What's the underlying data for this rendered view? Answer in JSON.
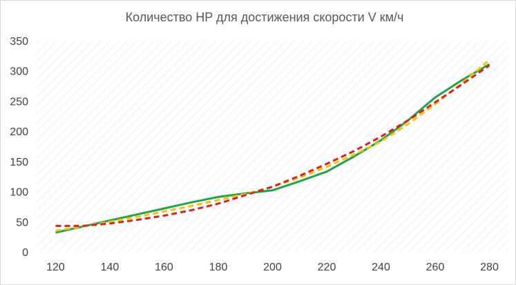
{
  "chart_data": {
    "type": "line",
    "title": "Количество HP для достижения скорости V км/ч",
    "xlabel": "",
    "ylabel": "",
    "x": [
      120,
      130,
      140,
      150,
      160,
      170,
      180,
      190,
      200,
      210,
      220,
      230,
      240,
      250,
      260,
      270,
      280
    ],
    "x_tick_labels": [
      "120",
      "140",
      "160",
      "180",
      "200",
      "220",
      "240",
      "260",
      "280"
    ],
    "y_tick_labels": [
      "0",
      "50",
      "100",
      "150",
      "200",
      "250",
      "300",
      "350"
    ],
    "ylim": [
      0,
      350
    ],
    "grid": "diagonal-hatched plot area",
    "legend": "none",
    "series": [
      {
        "color": "#1aa64b",
        "dash": "solid",
        "values": [
          32,
          42,
          52,
          62,
          72,
          82,
          91,
          97,
          102,
          117,
          133,
          158,
          185,
          218,
          256,
          285,
          311
        ]
      },
      {
        "color": "#f5c400",
        "dash": "dashed",
        "values": [
          35,
          42,
          50,
          58,
          67,
          76,
          86,
          96,
          108,
          123,
          141,
          161,
          183,
          212,
          245,
          280,
          318
        ]
      },
      {
        "color": "#e01f1f",
        "dash": "dashed",
        "values": [
          43,
          43,
          47,
          53,
          60,
          69,
          80,
          94,
          108,
          126,
          146,
          167,
          191,
          218,
          248,
          278,
          309
        ]
      }
    ]
  }
}
